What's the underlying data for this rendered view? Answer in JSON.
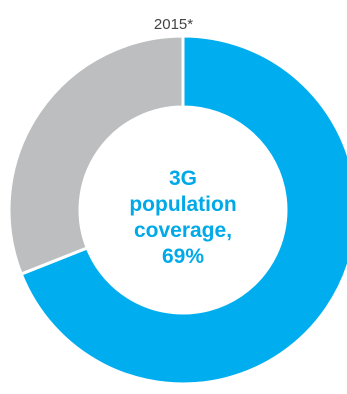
{
  "chart_data": {
    "type": "pie",
    "subtitle": "2015*",
    "slices": [
      {
        "label": "3G population coverage",
        "value": 69,
        "color": "#00aeef"
      },
      {
        "label": "",
        "value": 31,
        "color": "#bcbec0"
      }
    ],
    "center_text": {
      "line1": "3G",
      "line2": "population",
      "line3": "coverage,",
      "line4": "69%"
    },
    "accent_color": "#00a9e8",
    "grid": false,
    "legend": "none"
  }
}
